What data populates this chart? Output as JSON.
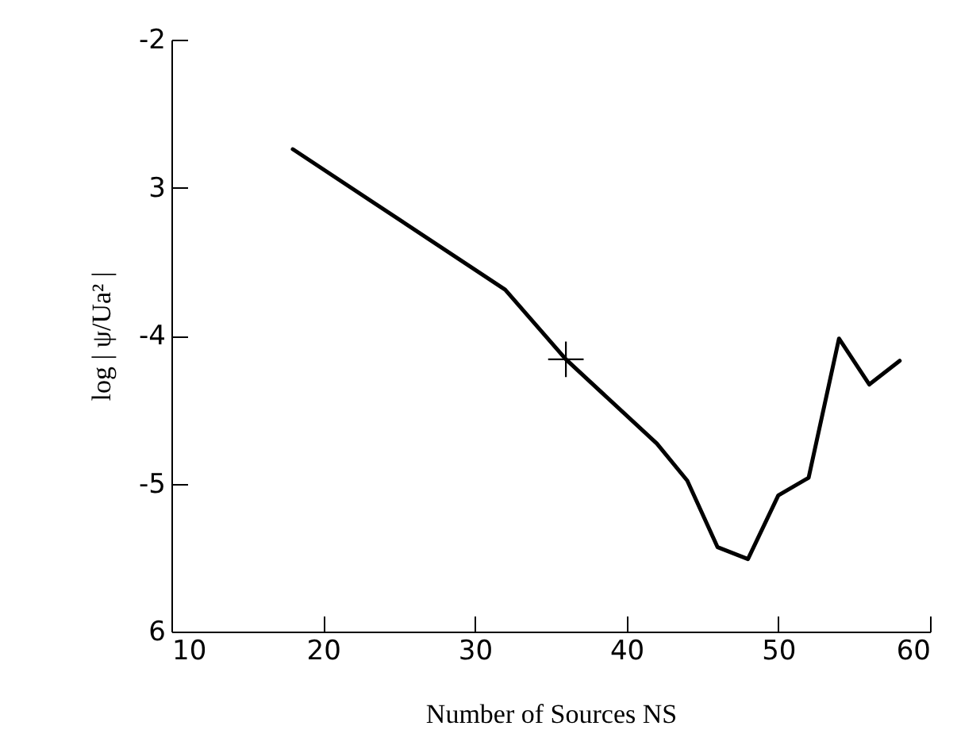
{
  "chart_data": {
    "type": "line",
    "xlabel": "Number of Sources  NS",
    "ylabel": "log | ψ/Ua² |",
    "xlim": [
      10,
      60
    ],
    "xticks": [
      10,
      20,
      30,
      40,
      50,
      60
    ],
    "ylim": [
      -6,
      -2
    ],
    "yticks": [
      {
        "value": -2,
        "label": "-2"
      },
      {
        "value": -3,
        "label": "3"
      },
      {
        "value": -4,
        "label": "-4"
      },
      {
        "value": -5,
        "label": "-5"
      },
      {
        "value": -6,
        "label": "6"
      }
    ],
    "grid": false,
    "series": [
      {
        "color": "#000000",
        "x": [
          18,
          32,
          36,
          42,
          44,
          46,
          48,
          50,
          52,
          54,
          56,
          58
        ],
        "values": [
          -2.74,
          -3.69,
          -4.16,
          -4.73,
          -4.98,
          -5.43,
          -5.51,
          -5.08,
          -4.96,
          -4.02,
          -4.33,
          -4.17
        ]
      },
      {
        "type": "scatter",
        "marker": "cross",
        "color": "#000000",
        "x": [
          36
        ],
        "values": [
          -4.16
        ]
      }
    ]
  }
}
